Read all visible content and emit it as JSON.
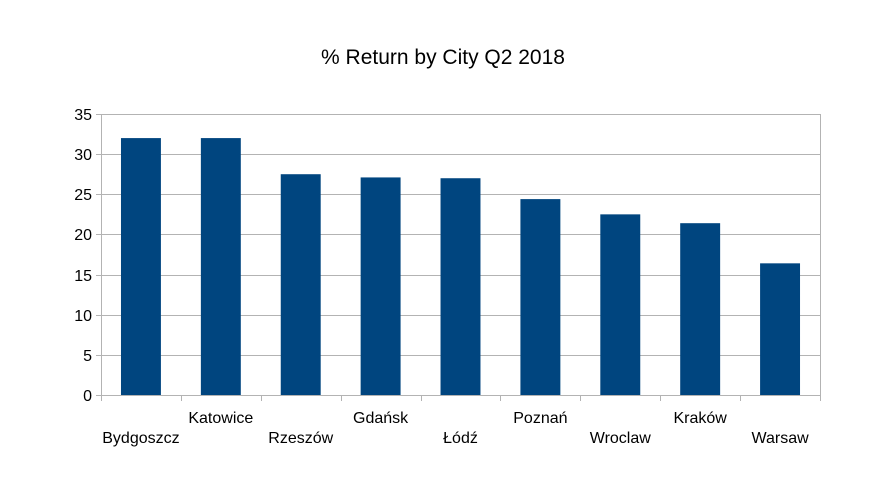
{
  "chart_data": {
    "type": "bar",
    "title": "% Return by City Q2 2018",
    "xlabel": "",
    "ylabel": "",
    "categories": [
      "Bydgoszcz",
      "Katowice",
      "Rzeszów",
      "Gdańsk",
      "Łódź",
      "Poznań",
      "Wroclaw",
      "Kraków",
      "Warsaw"
    ],
    "values": [
      32,
      32,
      27.5,
      27.1,
      27,
      24.4,
      22.5,
      21.4,
      16.4
    ],
    "ylim": [
      0,
      35
    ],
    "yticks": [
      0,
      5,
      10,
      15,
      20,
      25,
      30,
      35
    ],
    "grid": true,
    "legend": "none",
    "bar_color": "#00457F",
    "grid_color": "#B3B3B3"
  }
}
